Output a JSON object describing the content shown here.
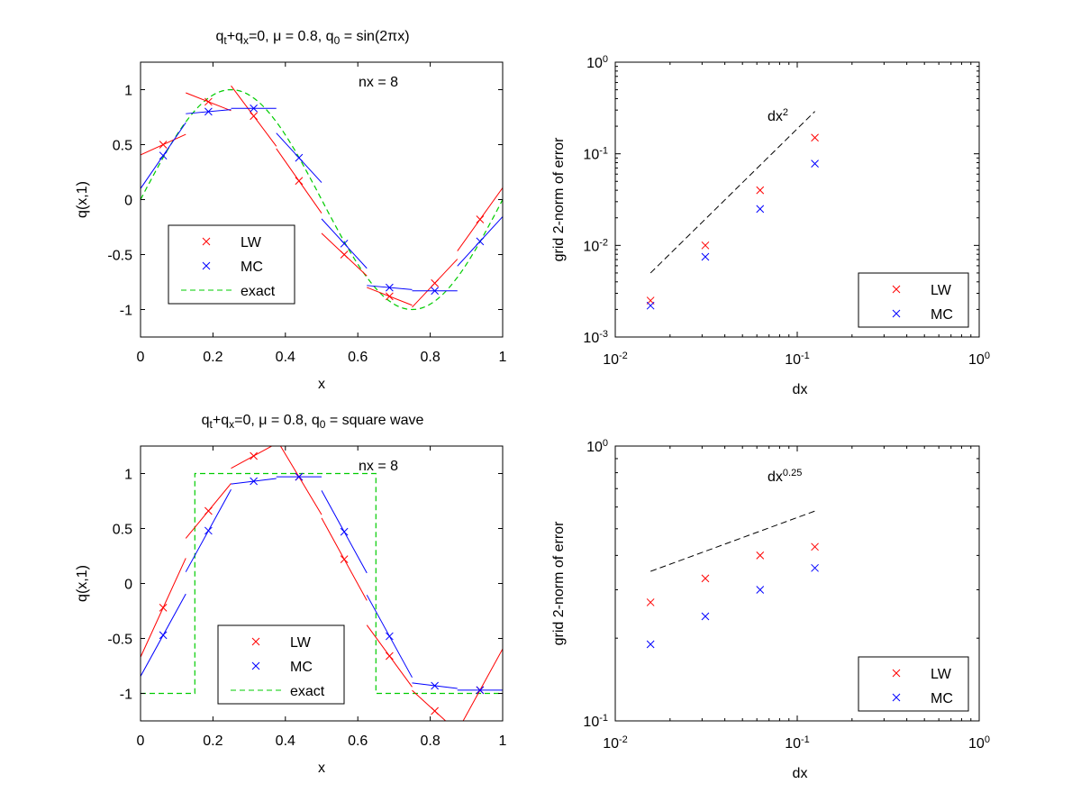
{
  "chart_data": [
    {
      "type": "line",
      "panel": "top-left",
      "title": {
        "a": "q",
        "a_sub": "t",
        "b": "+q",
        "b_sub": "x",
        "c": "=0, ",
        "mu": "μ",
        "d": " = 0.8, q",
        "d_sub": "0",
        "e": " = sin(2",
        "pi": "π",
        "f": "x)"
      },
      "annotation": "nx = 8",
      "xlabel": "x",
      "ylabel": "q(x,1)",
      "xlim": [
        0,
        1
      ],
      "ylim": [
        -1.25,
        1.25
      ],
      "xticks": [
        0,
        0.2,
        0.4,
        0.6,
        0.8,
        1
      ],
      "xtick_labels": [
        "0",
        "0.2",
        "0.4",
        "0.6",
        "0.8",
        "1"
      ],
      "yticks": [
        -1,
        -0.5,
        0,
        0.5,
        1
      ],
      "ytick_labels": [
        "-1",
        "-0.5",
        "0",
        "0.5",
        "1"
      ],
      "exact": {
        "kind": "sine",
        "name": "exact",
        "color": "#00cc00"
      },
      "series": [
        {
          "name": "LW",
          "color": "#ff0000",
          "points": [
            {
              "x": 0.0625,
              "y": 0.5,
              "slope": 1.5
            },
            {
              "x": 0.1875,
              "y": 0.89,
              "slope": -1.3
            },
            {
              "x": 0.3125,
              "y": 0.76,
              "slope": -4.4
            },
            {
              "x": 0.4375,
              "y": 0.17,
              "slope": -4.7
            },
            {
              "x": 0.5625,
              "y": -0.5,
              "slope": -3.1
            },
            {
              "x": 0.6875,
              "y": -0.88,
              "slope": -1.3
            },
            {
              "x": 0.8125,
              "y": -0.76,
              "slope": 3.5
            },
            {
              "x": 0.9375,
              "y": -0.18,
              "slope": 4.6
            }
          ]
        },
        {
          "name": "MC",
          "color": "#0000ff",
          "points": [
            {
              "x": 0.0625,
              "y": 0.4,
              "slope": 4.8
            },
            {
              "x": 0.1875,
              "y": 0.8,
              "slope": 0.3
            },
            {
              "x": 0.3125,
              "y": 0.83,
              "slope": 0
            },
            {
              "x": 0.4375,
              "y": 0.38,
              "slope": -3.6
            },
            {
              "x": 0.5625,
              "y": -0.4,
              "slope": -3.6
            },
            {
              "x": 0.6875,
              "y": -0.8,
              "slope": -0.3
            },
            {
              "x": 0.8125,
              "y": -0.83,
              "slope": 0
            },
            {
              "x": 0.9375,
              "y": -0.38,
              "slope": 3.6
            }
          ]
        }
      ],
      "legend": {
        "position": "bottom-left",
        "entries": [
          "LW",
          "MC",
          "exact"
        ]
      }
    },
    {
      "type": "scatter",
      "panel": "top-right",
      "scale": "log-log",
      "xlabel": "dx",
      "ylabel": "grid 2-norm of error",
      "xlim": [
        0.01,
        1
      ],
      "ylim": [
        0.001,
        1
      ],
      "xtick_labels": [
        {
          "base": "10",
          "exp": "-2",
          "value": 0.01
        },
        {
          "base": "10",
          "exp": "-1",
          "value": 0.1
        },
        {
          "base": "10",
          "exp": "0",
          "value": 1
        }
      ],
      "ytick_labels": [
        {
          "base": "10",
          "exp": "-3",
          "value": 0.001
        },
        {
          "base": "10",
          "exp": "-2",
          "value": 0.01
        },
        {
          "base": "10",
          "exp": "-1",
          "value": 0.1
        },
        {
          "base": "10",
          "exp": "0",
          "value": 1
        }
      ],
      "x": [
        0.015625,
        0.03125,
        0.0625,
        0.125
      ],
      "series": [
        {
          "name": "LW",
          "color": "#ff0000",
          "values": [
            0.0025,
            0.01,
            0.04,
            0.15
          ]
        },
        {
          "name": "MC",
          "color": "#0000ff",
          "values": [
            0.0022,
            0.0075,
            0.025,
            0.078
          ]
        }
      ],
      "reference": {
        "label_base": "dx",
        "label_exp": "2",
        "order": 2,
        "x": [
          0.015625,
          0.125
        ],
        "y": [
          0.005,
          0.29
        ],
        "color": "#000000"
      },
      "legend": {
        "position": "bottom-right",
        "entries": [
          "LW",
          "MC"
        ]
      }
    },
    {
      "type": "line",
      "panel": "bottom-left",
      "title": {
        "a": "q",
        "a_sub": "t",
        "b": "+q",
        "b_sub": "x",
        "c": "=0, ",
        "mu": "μ",
        "d": " = 0.8, q",
        "d_sub": "0",
        "e": " = square wave",
        "pi": "",
        "f": ""
      },
      "annotation": "nx = 8",
      "xlabel": "x",
      "ylabel": "q(x,1)",
      "xlim": [
        0,
        1
      ],
      "ylim": [
        -1.25,
        1.25
      ],
      "xticks": [
        0,
        0.2,
        0.4,
        0.6,
        0.8,
        1
      ],
      "xtick_labels": [
        "0",
        "0.2",
        "0.4",
        "0.6",
        "0.8",
        "1"
      ],
      "yticks": [
        -1,
        -0.5,
        0,
        0.5,
        1
      ],
      "ytick_labels": [
        "-1",
        "-0.5",
        "0",
        "0.5",
        "1"
      ],
      "exact": {
        "kind": "square",
        "low": -1,
        "high": 1,
        "x_up": 0.15,
        "x_down": 0.65,
        "name": "exact",
        "color": "#00cc00"
      },
      "series": [
        {
          "name": "LW",
          "color": "#ff0000",
          "points": [
            {
              "x": 0.0625,
              "y": -0.22,
              "slope": 7.2
            },
            {
              "x": 0.1875,
              "y": 0.66,
              "slope": 4.0
            },
            {
              "x": 0.3125,
              "y": 1.16,
              "slope": 1.8
            },
            {
              "x": 0.4375,
              "y": 0.97,
              "slope": -5.5
            },
            {
              "x": 0.5625,
              "y": 0.22,
              "slope": -6.0
            },
            {
              "x": 0.6875,
              "y": -0.66,
              "slope": -4.5
            },
            {
              "x": 0.8125,
              "y": -1.16,
              "slope": -3.0
            },
            {
              "x": 0.9375,
              "y": -0.97,
              "slope": 6.0
            }
          ]
        },
        {
          "name": "MC",
          "color": "#0000ff",
          "points": [
            {
              "x": 0.0625,
              "y": -0.47,
              "slope": 6.0
            },
            {
              "x": 0.1875,
              "y": 0.48,
              "slope": 6.0
            },
            {
              "x": 0.3125,
              "y": 0.93,
              "slope": 0.4
            },
            {
              "x": 0.4375,
              "y": 0.97,
              "slope": 0
            },
            {
              "x": 0.5625,
              "y": 0.47,
              "slope": -6.0
            },
            {
              "x": 0.6875,
              "y": -0.48,
              "slope": -6.0
            },
            {
              "x": 0.8125,
              "y": -0.93,
              "slope": -0.4
            },
            {
              "x": 0.9375,
              "y": -0.97,
              "slope": 0
            }
          ]
        }
      ],
      "legend": {
        "position": "bottom-center",
        "entries": [
          "LW",
          "MC",
          "exact"
        ]
      }
    },
    {
      "type": "scatter",
      "panel": "bottom-right",
      "scale": "log-log",
      "xlabel": "dx",
      "ylabel": "grid 2-norm of error",
      "xlim": [
        0.01,
        1
      ],
      "ylim": [
        0.1,
        1
      ],
      "xtick_labels": [
        {
          "base": "10",
          "exp": "-2",
          "value": 0.01
        },
        {
          "base": "10",
          "exp": "-1",
          "value": 0.1
        },
        {
          "base": "10",
          "exp": "0",
          "value": 1
        }
      ],
      "ytick_labels": [
        {
          "base": "10",
          "exp": "-1",
          "value": 0.1
        },
        {
          "base": "10",
          "exp": "0",
          "value": 1
        }
      ],
      "x": [
        0.015625,
        0.03125,
        0.0625,
        0.125
      ],
      "series": [
        {
          "name": "LW",
          "color": "#ff0000",
          "values": [
            0.27,
            0.33,
            0.4,
            0.43
          ]
        },
        {
          "name": "MC",
          "color": "#0000ff",
          "values": [
            0.19,
            0.24,
            0.3,
            0.36
          ]
        }
      ],
      "reference": {
        "label_base": "dx",
        "label_exp": "0.25",
        "order": 0.25,
        "x": [
          0.015625,
          0.125
        ],
        "y": [
          0.35,
          0.58
        ],
        "color": "#000000"
      },
      "legend": {
        "position": "bottom-right",
        "entries": [
          "LW",
          "MC"
        ]
      }
    }
  ]
}
